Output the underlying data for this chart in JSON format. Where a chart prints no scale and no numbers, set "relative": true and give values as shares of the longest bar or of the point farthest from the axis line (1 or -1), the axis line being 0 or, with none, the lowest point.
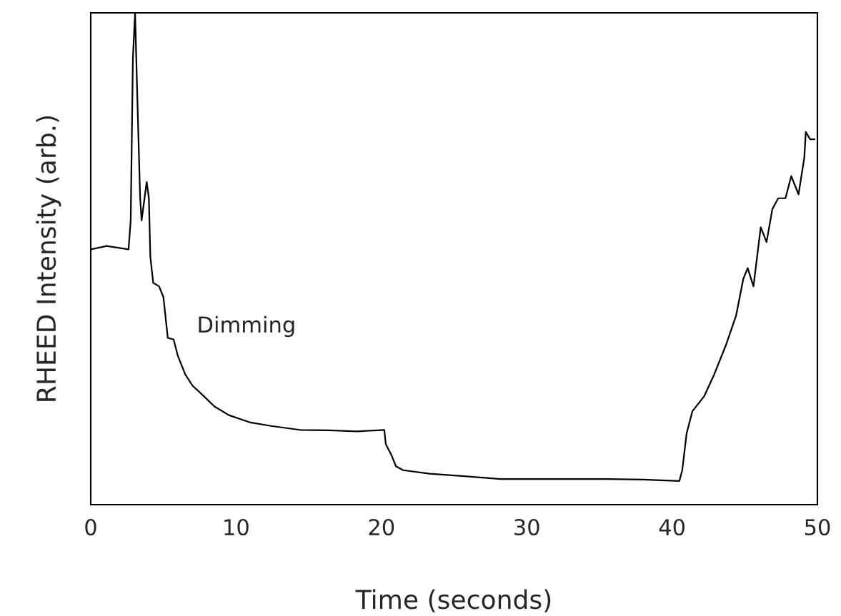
{
  "chart_data": {
    "type": "line",
    "relative": true,
    "xlabel": "Time (seconds)",
    "ylabel": "RHEED Intensity (arb.)",
    "xlim": [
      0,
      50
    ],
    "xticks": [
      0,
      10,
      20,
      30,
      40,
      50
    ],
    "grid": false,
    "line_style": "solid",
    "annotations": [
      "Dimming"
    ],
    "series": [
      {
        "color": "#000000",
        "x": [
          0,
          1.1,
          2.6,
          2.75,
          2.9,
          3.05,
          3.2,
          3.4,
          3.5,
          3.7,
          3.85,
          4.0,
          4.1,
          4.3,
          4.7,
          5.0,
          5.3,
          5.7,
          6.0,
          6.5,
          7.0,
          7.8,
          8.5,
          9.5,
          11,
          12.4,
          14.4,
          16.4,
          18.3,
          20.2,
          20.3,
          20.7,
          21.0,
          21.5,
          23.3,
          25.7,
          28.2,
          30.6,
          33.1,
          35.5,
          38,
          40.5,
          40.7,
          41,
          41.4,
          42.2,
          42.9,
          43.7,
          44.4,
          44.9,
          45.2,
          45.6,
          46.1,
          46.5,
          46.9,
          47.3,
          47.8,
          48.2,
          48.7,
          49.1,
          49.2,
          49.5,
          49.8
        ],
        "values": [
          0.519,
          0.526,
          0.519,
          0.578,
          0.907,
          1,
          0.833,
          0.623,
          0.578,
          0.623,
          0.656,
          0.623,
          0.504,
          0.451,
          0.444,
          0.422,
          0.339,
          0.336,
          0.302,
          0.265,
          0.242,
          0.22,
          0.2,
          0.182,
          0.167,
          0.16,
          0.152,
          0.151,
          0.149,
          0.152,
          0.123,
          0.1,
          0.078,
          0.07,
          0.063,
          0.058,
          0.052,
          0.052,
          0.052,
          0.052,
          0.051,
          0.048,
          0.07,
          0.145,
          0.19,
          0.22,
          0.265,
          0.324,
          0.384,
          0.459,
          0.481,
          0.444,
          0.564,
          0.534,
          0.601,
          0.623,
          0.623,
          0.668,
          0.631,
          0.706,
          0.758,
          0.743,
          0.743
        ]
      }
    ]
  }
}
